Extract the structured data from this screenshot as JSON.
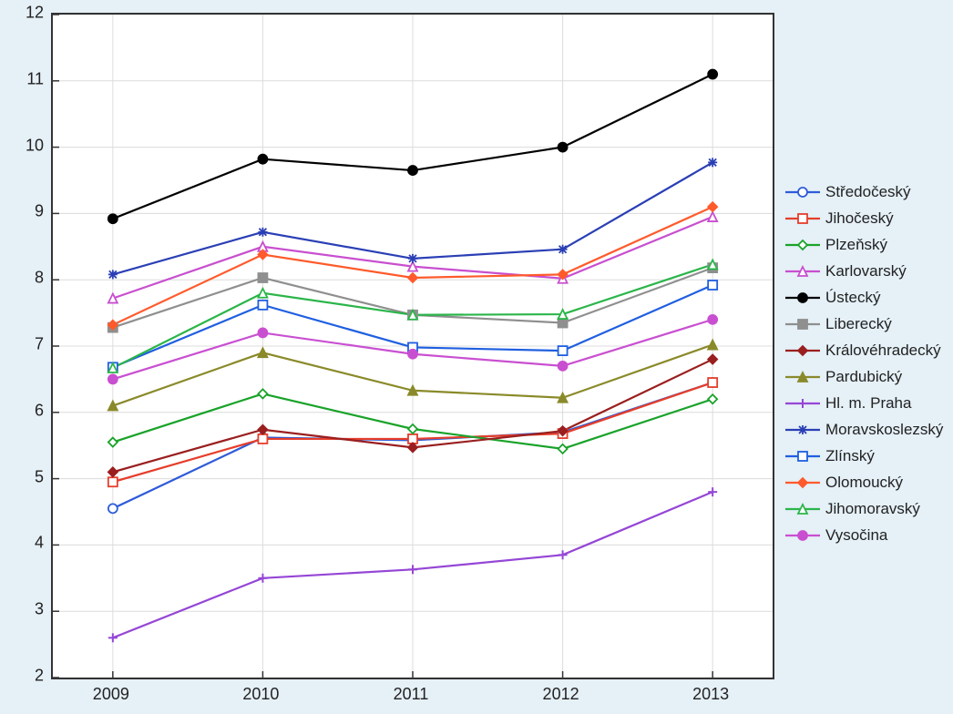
{
  "chart": {
    "type": "line",
    "background_color": "#e5f0f7",
    "plot_background": "#ffffff",
    "plot_border_color": "#333333",
    "grid_color": "#dcdcdc",
    "axis_fontsize": 18,
    "legend_fontsize": 17,
    "xlim": [
      2008.6,
      2013.4
    ],
    "ylim": [
      2,
      12
    ],
    "xticks": [
      2009,
      2010,
      2011,
      2012,
      2013
    ],
    "yticks": [
      2,
      3,
      4,
      5,
      6,
      7,
      8,
      9,
      10,
      11,
      12
    ],
    "xtick_labels": [
      "2009",
      "2010",
      "2011",
      "2012",
      "2013"
    ],
    "ytick_labels": [
      "2",
      "3",
      "4",
      "5",
      "6",
      "7",
      "8",
      "9",
      "10",
      "11",
      "12"
    ],
    "x": [
      2009,
      2010,
      2011,
      2012,
      2013
    ],
    "line_width": 2.2,
    "marker_size": 5,
    "series": [
      {
        "name": "Středočeský",
        "color": "#2f5bd8",
        "marker": "circle",
        "fill": "none",
        "y": [
          4.55,
          5.62,
          5.58,
          5.7,
          6.45
        ]
      },
      {
        "name": "Jihočeský",
        "color": "#e53e2b",
        "marker": "square",
        "fill": "none",
        "y": [
          4.95,
          5.6,
          5.6,
          5.68,
          6.45
        ]
      },
      {
        "name": "Plzeňský",
        "color": "#1aa32a",
        "marker": "diamond",
        "fill": "none",
        "y": [
          5.55,
          6.28,
          5.75,
          5.45,
          6.2
        ]
      },
      {
        "name": "Karlovarský",
        "color": "#c84fcf",
        "marker": "triangle",
        "fill": "none",
        "y": [
          7.72,
          8.5,
          8.2,
          8.02,
          8.95
        ]
      },
      {
        "name": "Ústecký",
        "color": "#000000",
        "marker": "circle",
        "fill": "solid",
        "y": [
          8.92,
          9.82,
          9.65,
          10.0,
          11.1
        ]
      },
      {
        "name": "Liberecký",
        "color": "#8f8f8f",
        "marker": "square",
        "fill": "solid",
        "y": [
          7.28,
          8.03,
          7.47,
          7.35,
          8.18
        ]
      },
      {
        "name": "Královéhradecký",
        "color": "#9a1f1f",
        "marker": "diamond",
        "fill": "solid",
        "y": [
          5.1,
          5.74,
          5.47,
          5.72,
          6.8
        ]
      },
      {
        "name": "Pardubický",
        "color": "#8a8a2a",
        "marker": "triangle",
        "fill": "solid",
        "y": [
          6.1,
          6.9,
          6.33,
          6.22,
          7.02
        ]
      },
      {
        "name": "Hl. m. Praha",
        "color": "#9546d6",
        "marker": "plus",
        "fill": "none",
        "y": [
          2.6,
          3.5,
          3.63,
          3.85,
          4.8
        ]
      },
      {
        "name": "Moravskoslezský",
        "color": "#2a3fb5",
        "marker": "asterisk",
        "fill": "none",
        "y": [
          8.08,
          8.72,
          8.32,
          8.46,
          9.77
        ]
      },
      {
        "name": "Zlínský",
        "color": "#1f5fe0",
        "marker": "square",
        "fill": "none",
        "y": [
          6.68,
          7.62,
          6.98,
          6.93,
          7.92
        ]
      },
      {
        "name": "Olomoucký",
        "color": "#ff5a2b",
        "marker": "diamond",
        "fill": "solid",
        "y": [
          7.32,
          8.38,
          8.03,
          8.08,
          9.1
        ]
      },
      {
        "name": "Jihomoravský",
        "color": "#2bb54a",
        "marker": "triangle",
        "fill": "none",
        "y": [
          6.67,
          7.8,
          7.47,
          7.48,
          8.23
        ]
      },
      {
        "name": "Vysočina",
        "color": "#c94fd1",
        "marker": "circle",
        "fill": "solid",
        "y": [
          6.5,
          7.2,
          6.88,
          6.7,
          7.4
        ]
      }
    ]
  }
}
